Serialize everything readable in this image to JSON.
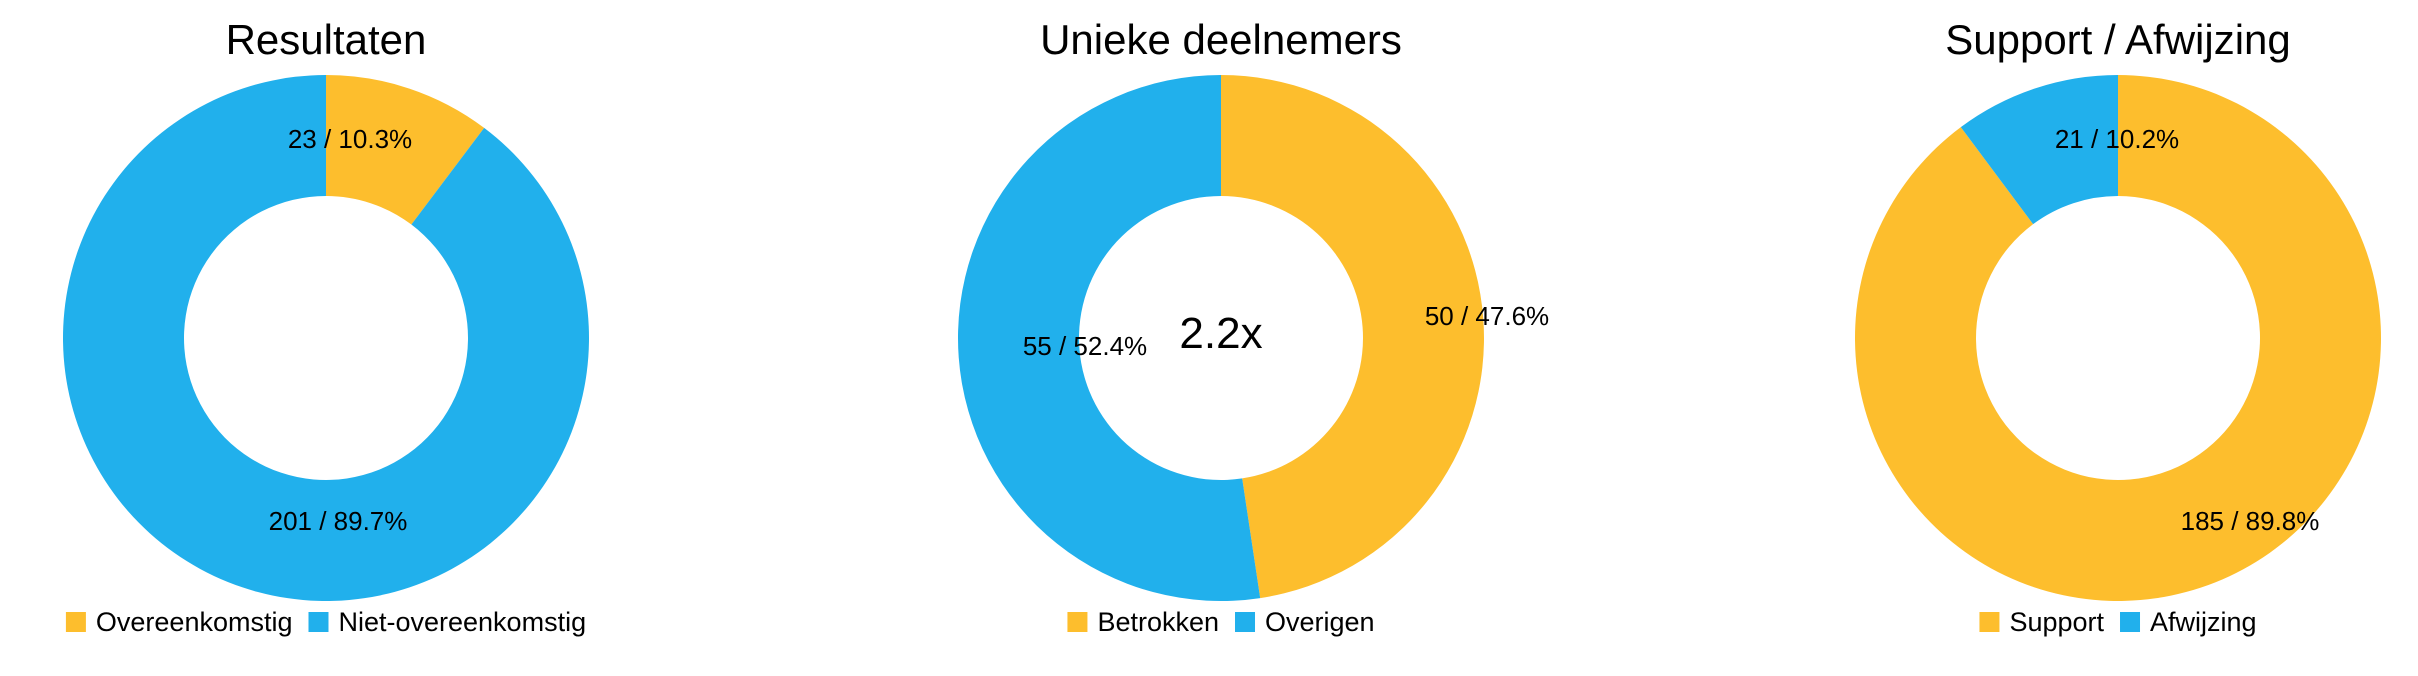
{
  "chart_data": [
    {
      "type": "pie",
      "title": "Resultaten",
      "center_label": "",
      "labels": [
        "Overeenkomstig",
        "Niet-overeenkomstig"
      ],
      "values": [
        23,
        201
      ],
      "slice_labels": [
        "23 / 10.3%",
        "201 / 89.7%"
      ],
      "colors": [
        "#FDBE2D",
        "#21B0EC"
      ],
      "donut": true,
      "legend": "bottom"
    },
    {
      "type": "pie",
      "title": "Unieke deelnemers",
      "center_label": "2.2x",
      "labels": [
        "Betrokken",
        "Overigen"
      ],
      "values": [
        50,
        55
      ],
      "slice_labels": [
        "50 / 47.6%",
        "55 / 52.4%"
      ],
      "colors": [
        "#FDBE2D",
        "#21B0EC"
      ],
      "donut": true,
      "legend": "bottom"
    },
    {
      "type": "pie",
      "title": "Support / Afwijzing",
      "center_label": "",
      "labels": [
        "Support",
        "Afwijzing"
      ],
      "values": [
        185,
        21
      ],
      "slice_labels": [
        "185 / 89.8%",
        "21 / 10.2%"
      ],
      "colors": [
        "#FDBE2D",
        "#21B0EC"
      ],
      "donut": true,
      "legend": "bottom"
    }
  ]
}
